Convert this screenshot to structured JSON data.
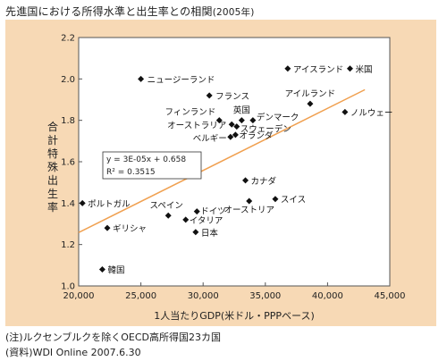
{
  "title": {
    "main": "先進国における所得水準と出生率との相関",
    "year": "(2005年)"
  },
  "notes": [
    "(注)ルクセンブルクを除くOECD高所得国23カ国",
    "(資料)WDI Online 2007.6.30"
  ],
  "colors": {
    "background": "#f7d9b5",
    "plot_area": "#ffffff",
    "trendline": "#f0a050",
    "marker": "#111111"
  },
  "chart_data": {
    "type": "scatter",
    "title": "先進国における所得水準と出生率との相関(2005年)",
    "xlabel": "1人当たりGDP(米ドル・PPPベース)",
    "ylabel": "合計特殊出生率",
    "xlim": [
      20000,
      45000
    ],
    "ylim": [
      1.0,
      2.2
    ],
    "xticks": [
      20000,
      25000,
      30000,
      35000,
      40000,
      45000
    ],
    "xtick_labels": [
      "20,000",
      "25,000",
      "30,000",
      "35,000",
      "40,000",
      "45,000"
    ],
    "yticks": [
      1.0,
      1.2,
      1.4,
      1.6,
      1.8,
      2.0,
      2.2
    ],
    "ytick_labels": [
      "1.0",
      "1.2",
      "1.4",
      "1.6",
      "1.8",
      "2.0",
      "2.2"
    ],
    "grid": false,
    "points": [
      {
        "label": "ニュージーランド",
        "x": 25000,
        "y": 2.0
      },
      {
        "label": "アイスランド",
        "x": 36800,
        "y": 2.05
      },
      {
        "label": "米国",
        "x": 41800,
        "y": 2.05
      },
      {
        "label": "フランス",
        "x": 30500,
        "y": 1.92
      },
      {
        "label": "アイルランド",
        "x": 38600,
        "y": 1.88
      },
      {
        "label": "ノルウェー",
        "x": 41400,
        "y": 1.84
      },
      {
        "label": "フィンランド",
        "x": 31300,
        "y": 1.8
      },
      {
        "label": "英国",
        "x": 33100,
        "y": 1.8
      },
      {
        "label": "デンマーク",
        "x": 34000,
        "y": 1.8
      },
      {
        "label": "オーストラリア",
        "x": 32300,
        "y": 1.78
      },
      {
        "label": "スウェーデン",
        "x": 32700,
        "y": 1.77
      },
      {
        "label": "オランダ",
        "x": 32600,
        "y": 1.73
      },
      {
        "label": "ベルギー",
        "x": 32200,
        "y": 1.72
      },
      {
        "label": "カナダ",
        "x": 33400,
        "y": 1.51
      },
      {
        "label": "スイス",
        "x": 35800,
        "y": 1.42
      },
      {
        "label": "オーストリア",
        "x": 33700,
        "y": 1.41
      },
      {
        "label": "ポルトガル",
        "x": 20300,
        "y": 1.4
      },
      {
        "label": "スペイン",
        "x": 27200,
        "y": 1.34
      },
      {
        "label": "ドイツ",
        "x": 29500,
        "y": 1.36
      },
      {
        "label": "イタリア",
        "x": 28600,
        "y": 1.32
      },
      {
        "label": "ギリシャ",
        "x": 22300,
        "y": 1.28
      },
      {
        "label": "日本",
        "x": 29400,
        "y": 1.26
      },
      {
        "label": "韓国",
        "x": 21900,
        "y": 1.08
      }
    ],
    "trendline": {
      "equation": "y = 3E-05x + 0.658",
      "r2": "R² = 0.3515",
      "slope": 3e-05,
      "intercept": 0.658,
      "x_range": [
        20000,
        43000
      ]
    }
  }
}
